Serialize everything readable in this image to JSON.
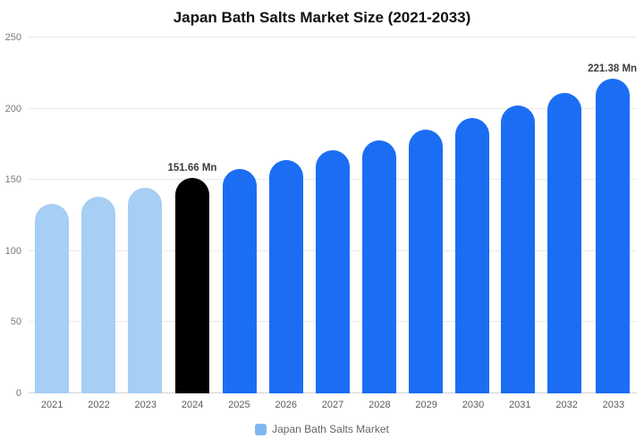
{
  "chart_data": {
    "type": "bar",
    "title": "Japan Bath Salts Market Size (2021-2033)",
    "unit": "Mn",
    "categories": [
      "2021",
      "2022",
      "2023",
      "2024",
      "2025",
      "2026",
      "2027",
      "2028",
      "2029",
      "2030",
      "2031",
      "2032",
      "2033"
    ],
    "values": [
      133,
      138.5,
      144.5,
      151.66,
      157.5,
      164,
      171,
      178,
      185.5,
      193.5,
      202,
      211,
      221.38
    ],
    "bar_colors": [
      "#A7CEF3",
      "#A7CEF3",
      "#A7CEF3",
      "#000000",
      "#1B6EF3",
      "#1B6EF3",
      "#1B6EF3",
      "#1B6EF3",
      "#1B6EF3",
      "#1B6EF3",
      "#1B6EF3",
      "#1B6EF3",
      "#1B6EF3"
    ],
    "annotations": [
      {
        "category": "2024",
        "text": "151.66 Mn"
      },
      {
        "category": "2033",
        "text": "221.38 Mn"
      }
    ],
    "ylim": [
      0,
      250
    ],
    "yticks": [
      0,
      50,
      100,
      150,
      200,
      250
    ],
    "grid": true,
    "legend_position": "bottom"
  },
  "legend": {
    "label": "Japan Bath Salts Market",
    "marker_color": "#7FB8F0"
  }
}
